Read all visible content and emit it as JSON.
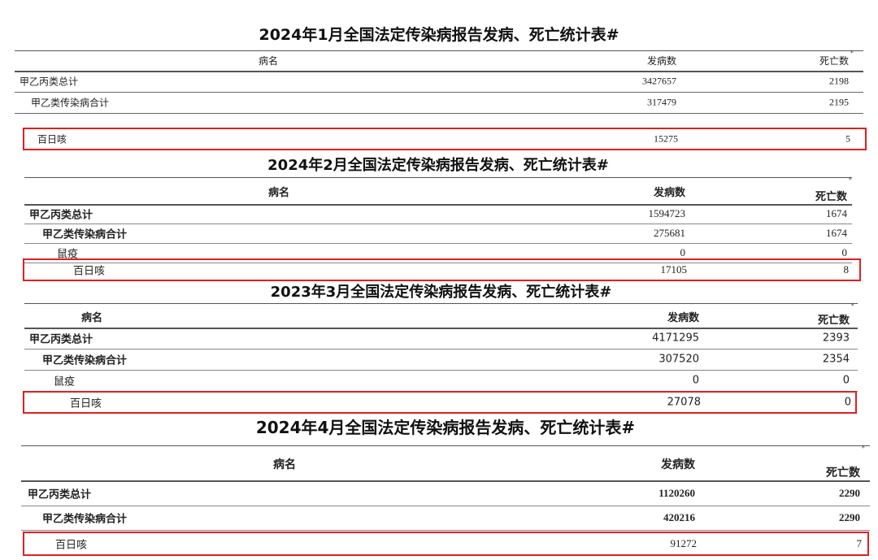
{
  "tables": [
    {
      "title": "2024年1月全国法定传染病报告发病、死亡统计表#",
      "headers": {
        "name": "病名",
        "cases": "发病数",
        "deaths": "死亡数",
        "mark": "*"
      },
      "rows": [
        {
          "name": "甲乙丙类总计",
          "cases": "3427657",
          "deaths": "2198"
        },
        {
          "name": "甲乙类传染病合计",
          "cases": "317479",
          "deaths": "2195"
        }
      ],
      "highlight": {
        "name": "百日咳",
        "cases": "15275",
        "deaths": "5"
      }
    },
    {
      "title": "2024年2月全国法定传染病报告发病、死亡统计表#",
      "headers": {
        "name": "病名",
        "cases": "发病数",
        "deaths": "死亡数",
        "mark": "*"
      },
      "rows": [
        {
          "name": "甲乙丙类总计",
          "cases": "1594723",
          "deaths": "1674"
        },
        {
          "name": "甲乙类传染病合计",
          "cases": "275681",
          "deaths": "1674"
        },
        {
          "name": "鼠疫",
          "cases": "0",
          "deaths": "0"
        }
      ],
      "highlight": {
        "name": "百日咳",
        "cases": "17105",
        "deaths": "8"
      }
    },
    {
      "title": "2023年3月全国法定传染病报告发病、死亡统计表#",
      "headers": {
        "name": "病名",
        "cases": "发病数",
        "deaths": "死亡数",
        "mark": "*"
      },
      "rows": [
        {
          "name": "甲乙丙类总计",
          "cases": "4171295",
          "deaths": "2393"
        },
        {
          "name": "甲乙类传染病合计",
          "cases": "307520",
          "deaths": "2354"
        },
        {
          "name": "鼠疫",
          "cases": "0",
          "deaths": "0"
        }
      ],
      "highlight": {
        "name": "百日咳",
        "cases": "27078",
        "deaths": "0"
      }
    },
    {
      "title": "2024年4月全国法定传染病报告发病、死亡统计表#",
      "headers": {
        "name": "病名",
        "cases": "发病数",
        "deaths": "死亡数",
        "mark": "*"
      },
      "rows": [
        {
          "name": "甲乙丙类总计",
          "cases": "1120260",
          "deaths": "2290"
        },
        {
          "name": "甲乙类传染病合计",
          "cases": "420216",
          "deaths": "2290"
        }
      ],
      "highlight": {
        "name": "百日咳",
        "cases": "91272",
        "deaths": "7"
      }
    }
  ],
  "colors": {
    "highlight_border": "#e02020"
  }
}
